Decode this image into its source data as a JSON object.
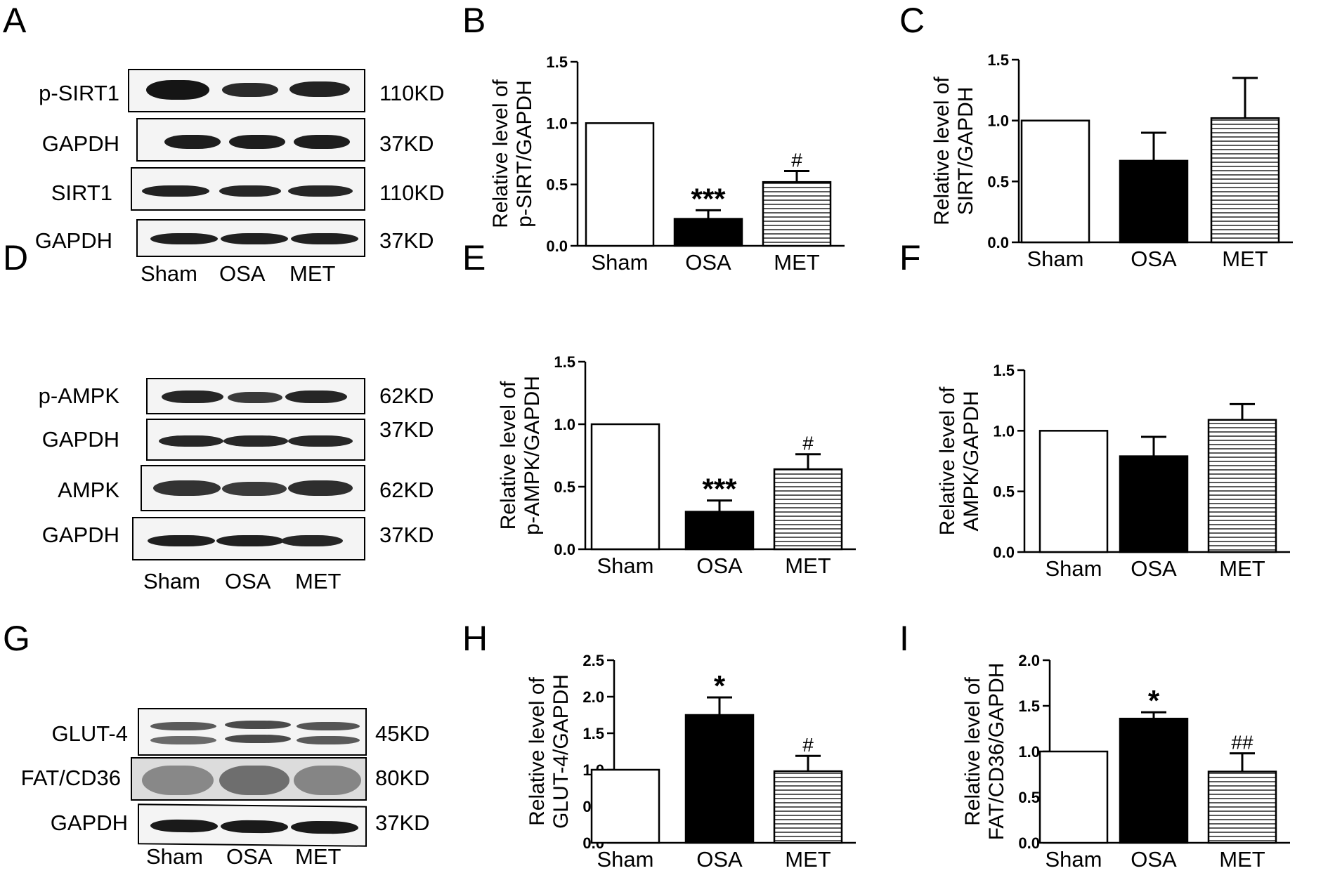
{
  "letters": [
    "A",
    "B",
    "C",
    "D",
    "E",
    "F",
    "G",
    "H",
    "I"
  ],
  "blots": [
    {
      "rows": [
        {
          "label": "p-SIRT1",
          "kd": "110KD"
        },
        {
          "label": "GAPDH",
          "kd": "37KD"
        },
        {
          "label": "SIRT1",
          "kd": "110KD"
        },
        {
          "label": "GAPDH",
          "kd": "37KD"
        }
      ],
      "lanes": [
        "Sham",
        "OSA",
        "MET"
      ]
    },
    {
      "rows": [
        {
          "label": "p-AMPK",
          "kd": "62KD"
        },
        {
          "label": "GAPDH",
          "kd": "37KD"
        },
        {
          "label": "AMPK",
          "kd": "62KD"
        },
        {
          "label": "GAPDH",
          "kd": "37KD"
        }
      ],
      "lanes": [
        "Sham",
        "OSA",
        "MET"
      ]
    },
    {
      "rows": [
        {
          "label": "GLUT-4",
          "kd": "45KD"
        },
        {
          "label": "FAT/CD36",
          "kd": "80KD"
        },
        {
          "label": "GAPDH",
          "kd": "37KD"
        }
      ],
      "lanes": [
        "Sham",
        "OSA",
        "MET"
      ]
    }
  ],
  "chart_data": [
    {
      "type": "bar",
      "categories": [
        "Sham",
        "OSA",
        "MET"
      ],
      "values": [
        1.0,
        0.22,
        0.52
      ],
      "errors": [
        0,
        0.07,
        0.09
      ],
      "annotations": [
        "",
        "***",
        "#"
      ],
      "ylabel_line1": "Relative level of",
      "ylabel_line2": "p-SIRT/GAPDH",
      "ylim": [
        0,
        1.5
      ],
      "yticks": [
        "0.0",
        "0.5",
        "1.0",
        "1.5"
      ]
    },
    {
      "type": "bar",
      "categories": [
        "Sham",
        "OSA",
        "MET"
      ],
      "values": [
        1.0,
        0.67,
        1.02
      ],
      "errors": [
        0,
        0.23,
        0.33
      ],
      "annotations": [
        "",
        "",
        ""
      ],
      "ylabel_line1": "Relative level of",
      "ylabel_line2": "SIRT/GAPDH",
      "ylim": [
        0,
        1.5
      ],
      "yticks": [
        "0.0",
        "0.5",
        "1.0",
        "1.5"
      ]
    },
    {
      "type": "bar",
      "categories": [
        "Sham",
        "OSA",
        "MET"
      ],
      "values": [
        1.0,
        0.3,
        0.64
      ],
      "errors": [
        0,
        0.09,
        0.12
      ],
      "annotations": [
        "",
        "***",
        "#"
      ],
      "ylabel_line1": "Relative level of",
      "ylabel_line2": "p-AMPK/GAPDH",
      "ylim": [
        0,
        1.5
      ],
      "yticks": [
        "0.0",
        "0.5",
        "1.0",
        "1.5"
      ]
    },
    {
      "type": "bar",
      "categories": [
        "Sham",
        "OSA",
        "MET"
      ],
      "values": [
        1.0,
        0.79,
        1.09
      ],
      "errors": [
        0,
        0.16,
        0.13
      ],
      "annotations": [
        "",
        "",
        ""
      ],
      "ylabel_line1": "Relative level of",
      "ylabel_line2": "AMPK/GAPDH",
      "ylim": [
        0,
        1.5
      ],
      "yticks": [
        "0.0",
        "0.5",
        "1.0",
        "1.5"
      ]
    },
    {
      "type": "bar",
      "categories": [
        "Sham",
        "OSA",
        "MET"
      ],
      "values": [
        1.0,
        1.75,
        0.98
      ],
      "errors": [
        0,
        0.24,
        0.21
      ],
      "annotations": [
        "",
        "*",
        "#"
      ],
      "ylabel_line1": "Relative level of",
      "ylabel_line2": "GLUT-4/GAPDH",
      "ylim": [
        0,
        2.5
      ],
      "yticks": [
        "0.0",
        "0.5",
        "1.0",
        "1.5",
        "2.0",
        "2.5"
      ]
    },
    {
      "type": "bar",
      "categories": [
        "Sham",
        "OSA",
        "MET"
      ],
      "values": [
        1.0,
        1.36,
        0.78
      ],
      "errors": [
        0,
        0.07,
        0.2
      ],
      "annotations": [
        "",
        "*",
        "##"
      ],
      "ylabel_line1": "Relative level of",
      "ylabel_line2": "FAT/CD36/GAPDH",
      "ylim": [
        0,
        2.0
      ],
      "yticks": [
        "0.0",
        "0.5",
        "1.0",
        "1.5",
        "2.0"
      ]
    }
  ]
}
